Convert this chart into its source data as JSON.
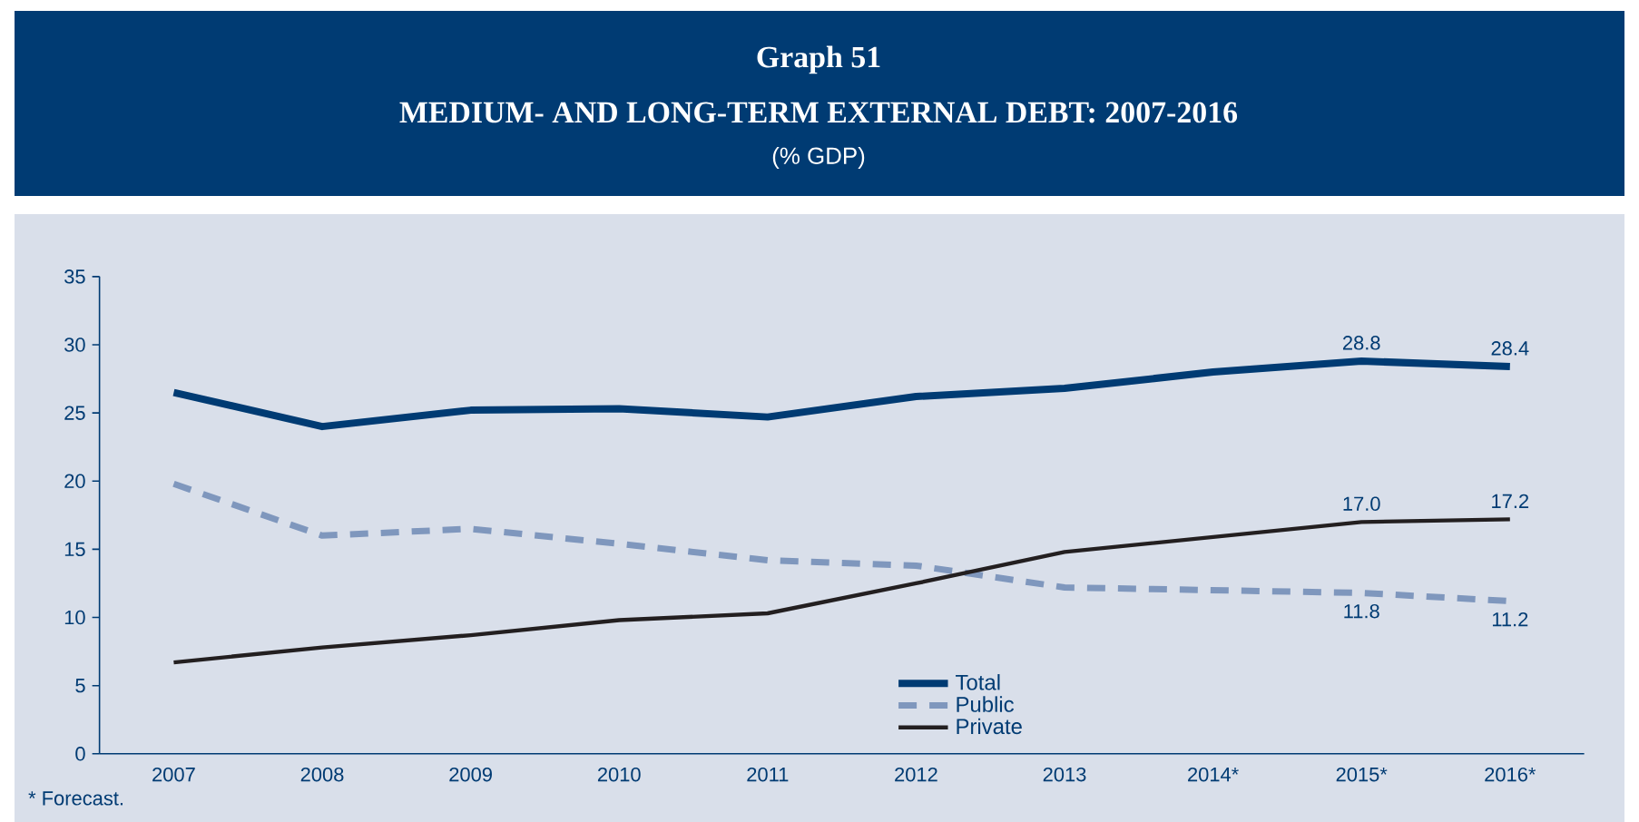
{
  "chart_data": {
    "type": "line",
    "title": "MEDIUM- AND LONG-TERM EXTERNAL DEBT: 2007-2016",
    "subtitle": "(% GDP)",
    "annotations": [
      "Graph 51",
      "* Forecast."
    ],
    "categories": [
      "2007",
      "2008",
      "2009",
      "2010",
      "2011",
      "2012",
      "2013",
      "2014*",
      "2015*",
      "2016*"
    ],
    "series": [
      {
        "name": "Total",
        "color": "#003b73",
        "line_style": "solid",
        "values": [
          26.5,
          24.0,
          25.2,
          25.3,
          24.7,
          26.2,
          26.8,
          28.0,
          28.8,
          28.4
        ],
        "value_labels": [
          null,
          null,
          null,
          null,
          null,
          null,
          null,
          null,
          "28.8",
          "28.4"
        ]
      },
      {
        "name": "Public",
        "color": "#7f97bd",
        "line_style": "dashed",
        "values": [
          19.8,
          16.0,
          16.5,
          15.4,
          14.2,
          13.8,
          12.2,
          12.0,
          11.8,
          11.2
        ],
        "value_labels": [
          null,
          null,
          null,
          null,
          null,
          null,
          null,
          null,
          "11.8",
          "11.2"
        ]
      },
      {
        "name": "Private",
        "color": "#231f20",
        "line_style": "solid",
        "values": [
          6.7,
          7.8,
          8.7,
          9.8,
          10.3,
          12.5,
          14.8,
          15.9,
          17.0,
          17.2
        ],
        "value_labels": [
          null,
          null,
          null,
          null,
          null,
          null,
          null,
          null,
          "17.0",
          "17.2"
        ]
      }
    ],
    "ylim": [
      0,
      35
    ],
    "yticks": [
      0,
      5,
      10,
      15,
      20,
      25,
      30,
      35
    ],
    "grid": false,
    "legend": "bottom",
    "marker": "none"
  }
}
